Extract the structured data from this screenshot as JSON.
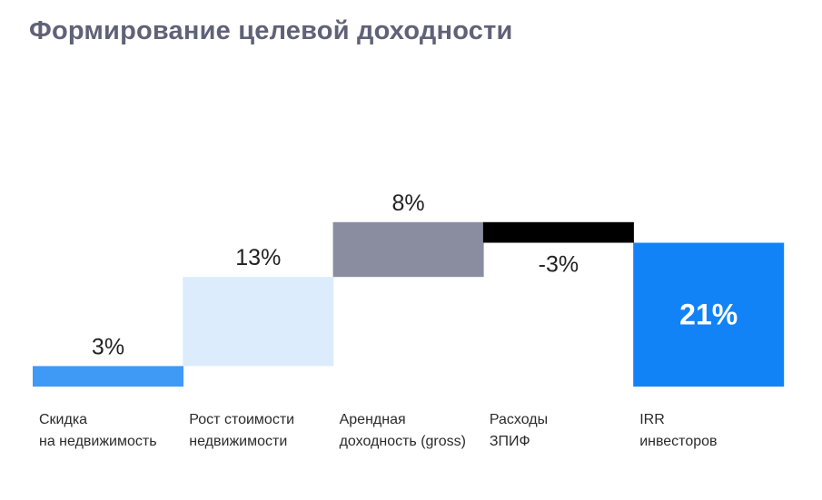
{
  "title": "Формирование целевой доходности",
  "chart_data": {
    "type": "waterfall",
    "title": "Формирование целевой доходности",
    "unit": "%",
    "categories": [
      [
        "Скидка",
        "на недвижимость"
      ],
      [
        "Рост стоимости",
        "недвижимости"
      ],
      [
        "Арендная",
        "доходность (gross)"
      ],
      [
        "Расходы",
        "ЗПИФ"
      ],
      [
        "IRR",
        "инвесторов"
      ]
    ],
    "values": [
      3,
      13,
      8,
      -3,
      21
    ],
    "labels": [
      "3%",
      "13%",
      "8%",
      "-3%",
      "21%"
    ],
    "total_index": 4,
    "colors": [
      "#3f9af5",
      "#dcecfd",
      "#8a8d9f",
      "#000000",
      "#1283f7"
    ],
    "label_colors": [
      "#222222",
      "#222222",
      "#222222",
      "#222222",
      "#ffffff"
    ]
  }
}
